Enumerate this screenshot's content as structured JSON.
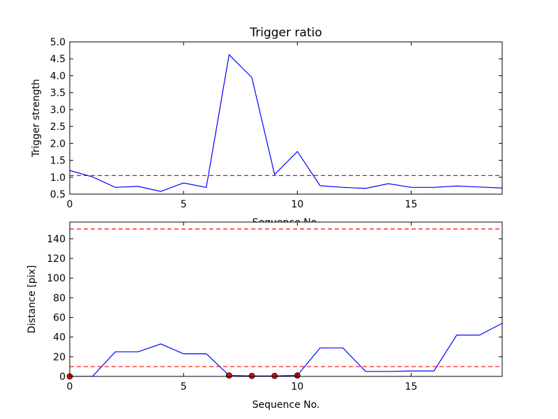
{
  "chart_data": [
    {
      "type": "line",
      "title": "Trigger ratio",
      "xlabel": "Sequence No.",
      "ylabel": "Trigger strength",
      "xlim": [
        0,
        19
      ],
      "ylim": [
        0.5,
        5.0
      ],
      "xticks": [
        0,
        5,
        10,
        15
      ],
      "xtick_labels": [
        "0",
        "5",
        "10",
        "15"
      ],
      "yticks": [
        0.5,
        1.0,
        1.5,
        2.0,
        2.5,
        3.0,
        3.5,
        4.0,
        4.5,
        5.0
      ],
      "ytick_labels": [
        "0.5",
        "1.0",
        "1.5",
        "2.0",
        "2.5",
        "3.0",
        "3.5",
        "4.0",
        "4.5",
        "5.0"
      ],
      "grid": false,
      "series": [
        {
          "x": [
            0,
            1,
            2,
            3,
            4,
            5,
            6,
            7,
            8,
            9,
            10,
            11,
            12,
            13,
            14,
            15,
            16,
            17,
            18,
            19
          ],
          "values": [
            1.2,
            1.01,
            0.7,
            0.73,
            0.58,
            0.83,
            0.7,
            4.62,
            3.95,
            1.08,
            1.76,
            0.75,
            0.7,
            0.67,
            0.81,
            0.7,
            0.7,
            0.74,
            0.71,
            0.68
          ],
          "color": "#0000ff"
        }
      ],
      "threshold": {
        "y": 1.05,
        "color": "#ff0000",
        "style": "dashed"
      }
    },
    {
      "type": "line",
      "title": "",
      "xlabel": "Sequence No.",
      "ylabel": "Distance [pix]",
      "xlim": [
        0,
        19
      ],
      "ylim": [
        0,
        157
      ],
      "xticks": [
        0,
        5,
        10,
        15
      ],
      "xtick_labels": [
        "0",
        "5",
        "10",
        "15"
      ],
      "yticks": [
        0,
        20,
        40,
        60,
        80,
        100,
        120,
        140
      ],
      "ytick_labels": [
        "0",
        "20",
        "40",
        "60",
        "80",
        "100",
        "120",
        "140"
      ],
      "grid": false,
      "series": [
        {
          "x": [
            0,
            1,
            2,
            3,
            4,
            5,
            6,
            7,
            8,
            9,
            10,
            11,
            12,
            13,
            14,
            15,
            16,
            17,
            18,
            19
          ],
          "values": [
            0,
            0,
            25,
            25,
            33,
            23,
            23,
            1,
            0.5,
            0.5,
            1,
            29,
            29,
            5,
            5,
            5.5,
            5.5,
            42,
            42,
            54
          ],
          "color": "#0000ff"
        }
      ],
      "markers": {
        "x": [
          0,
          7,
          8,
          9,
          10
        ],
        "y": [
          0,
          1,
          0.5,
          0.5,
          1
        ],
        "color": "#ff0000"
      },
      "thresholds": [
        {
          "y": 150,
          "color": "#ff0000",
          "style": "dashed"
        },
        {
          "y": 10,
          "color": "#ff0000",
          "style": "dashed"
        }
      ]
    }
  ]
}
